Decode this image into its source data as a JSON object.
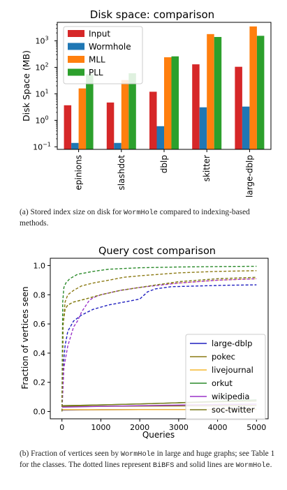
{
  "chart_data": [
    {
      "type": "bar",
      "title": "Disk space: comparison",
      "ylabel": "Disk Space (MB)",
      "yscale": "log",
      "ylim": [
        0.08,
        5000
      ],
      "yticks": [
        0.1,
        1,
        10,
        100,
        1000
      ],
      "ytick_labels": [
        {
          "base": "10",
          "exp": "−1"
        },
        {
          "base": "10",
          "exp": "0"
        },
        {
          "base": "10",
          "exp": "1"
        },
        {
          "base": "10",
          "exp": "2"
        },
        {
          "base": "10",
          "exp": "3"
        }
      ],
      "categories": [
        "epinions",
        "slashdot",
        "dblp",
        "skitter",
        "large-dblp"
      ],
      "legend_position": "top-left",
      "series": [
        {
          "name": "Input",
          "color": "#d62728",
          "values": [
            3.7,
            4.7,
            12,
            130,
            105
          ]
        },
        {
          "name": "Wormhole",
          "color": "#1f77b4",
          "values": [
            0.14,
            0.14,
            0.6,
            3.1,
            3.3
          ]
        },
        {
          "name": "MLL",
          "color": "#ff7f0e",
          "values": [
            16,
            33,
            240,
            1800,
            3500
          ]
        },
        {
          "name": "PLL",
          "color": "#2ca02c",
          "values": [
            55,
            60,
            260,
            1400,
            1550
          ]
        }
      ]
    },
    {
      "type": "line",
      "title": "Query cost comparison",
      "xlabel": "Queries",
      "ylabel": "Fraction of vertices seen",
      "xlim": [
        -300,
        5300
      ],
      "ylim": [
        -0.05,
        1.05
      ],
      "xticks": [
        0,
        1000,
        2000,
        3000,
        4000,
        5000
      ],
      "yticks": [
        0.0,
        0.2,
        0.4,
        0.6,
        0.8,
        1.0
      ],
      "ytick_labels": [
        "0.0",
        "0.2",
        "0.4",
        "0.6",
        "0.8",
        "1.0"
      ],
      "legend_position": "center-right",
      "series": [
        {
          "name": "large-dblp",
          "color": "#1f1fbf",
          "style": "dashed",
          "x": [
            0,
            30,
            80,
            150,
            300,
            500,
            800,
            1200,
            1600,
            2000,
            2200,
            2400,
            2800,
            3500,
            4200,
            5000
          ],
          "y": [
            0.0,
            0.3,
            0.45,
            0.55,
            0.62,
            0.66,
            0.7,
            0.73,
            0.75,
            0.77,
            0.82,
            0.84,
            0.855,
            0.86,
            0.865,
            0.868
          ]
        },
        {
          "name": "large-dblp",
          "color": "#1f1fbf",
          "style": "solid",
          "x": [
            0,
            1000,
            2000,
            3000,
            4000,
            5000
          ],
          "y": [
            0.01,
            0.012,
            0.013,
            0.013,
            0.014,
            0.014
          ]
        },
        {
          "name": "pokec",
          "color": "#8c7a14",
          "style": "dashed",
          "x": [
            0,
            30,
            80,
            150,
            300,
            500,
            800,
            1200,
            1600,
            2000,
            2500,
            3000,
            4000,
            5000
          ],
          "y": [
            0.0,
            0.6,
            0.75,
            0.8,
            0.83,
            0.86,
            0.88,
            0.9,
            0.92,
            0.93,
            0.94,
            0.95,
            0.96,
            0.965
          ]
        },
        {
          "name": "pokec",
          "color": "#8c7a14",
          "style": "solid",
          "x": [
            0,
            1000,
            2000,
            3000,
            4000,
            5000
          ],
          "y": [
            0.035,
            0.036,
            0.037,
            0.038,
            0.039,
            0.04
          ]
        },
        {
          "name": "livejournal",
          "color": "#f5b82e",
          "style": "dashed",
          "x": [
            0,
            30,
            80,
            150,
            300,
            600,
            1000,
            1500,
            2000,
            2500,
            3000,
            4000,
            5000
          ],
          "y": [
            0.0,
            0.62,
            0.7,
            0.73,
            0.75,
            0.77,
            0.8,
            0.83,
            0.85,
            0.87,
            0.88,
            0.9,
            0.91
          ]
        },
        {
          "name": "livejournal",
          "color": "#f5b82e",
          "style": "solid",
          "x": [
            0,
            1000,
            2000,
            3000,
            4000,
            5000
          ],
          "y": [
            0.012,
            0.012,
            0.013,
            0.013,
            0.013,
            0.014
          ]
        },
        {
          "name": "orkut",
          "color": "#2a8a2a",
          "style": "dashed",
          "x": [
            0,
            20,
            50,
            100,
            200,
            400,
            800,
            1200,
            2000,
            3000,
            4000,
            5000
          ],
          "y": [
            0.0,
            0.75,
            0.85,
            0.88,
            0.91,
            0.94,
            0.96,
            0.975,
            0.985,
            0.99,
            0.993,
            0.995
          ]
        },
        {
          "name": "orkut",
          "color": "#2a8a2a",
          "style": "solid",
          "x": [
            0,
            1000,
            2000,
            3000,
            4000,
            5000
          ],
          "y": [
            0.04,
            0.045,
            0.052,
            0.06,
            0.07,
            0.08
          ]
        },
        {
          "name": "wikipedia",
          "color": "#9a32c8",
          "style": "dashed",
          "x": [
            0,
            50,
            150,
            300,
            400,
            500,
            600,
            700,
            800,
            1000,
            1500,
            2000,
            3000,
            4000,
            5000
          ],
          "y": [
            0.0,
            0.3,
            0.45,
            0.58,
            0.62,
            0.68,
            0.72,
            0.76,
            0.78,
            0.8,
            0.83,
            0.85,
            0.88,
            0.9,
            0.91
          ]
        },
        {
          "name": "wikipedia",
          "color": "#9a32c8",
          "style": "solid",
          "x": [
            0,
            1000,
            2000,
            3000,
            4000,
            5000
          ],
          "y": [
            0.03,
            0.035,
            0.04,
            0.044,
            0.048,
            0.05
          ]
        },
        {
          "name": "soc-twitter",
          "color": "#7a7a1a",
          "style": "dashed",
          "x": [
            0,
            30,
            80,
            150,
            300,
            600,
            1000,
            1500,
            2000,
            2500,
            3000,
            4000,
            5000
          ],
          "y": [
            0.0,
            0.6,
            0.7,
            0.73,
            0.75,
            0.77,
            0.8,
            0.83,
            0.85,
            0.87,
            0.89,
            0.91,
            0.92
          ]
        },
        {
          "name": "soc-twitter",
          "color": "#7a7a1a",
          "style": "solid",
          "x": [
            0,
            1000,
            2000,
            3000,
            4000,
            5000
          ],
          "y": [
            0.04,
            0.045,
            0.052,
            0.06,
            0.066,
            0.072
          ]
        }
      ]
    }
  ],
  "captions": {
    "a": {
      "prefix": "(a)  Stored index size on disk for ",
      "code": "WormHole",
      "suffix": " compared to indexing-based methods."
    },
    "b": {
      "prefix": "(b)  Fraction of vertices seen by ",
      "code1": "WormHole",
      "mid1": " in large and huge graphs; see Table 1 for the classes. The dotted lines represent ",
      "code2": "BiBFS",
      "mid2": " and solid lines are ",
      "code3": "WormHole",
      "suffix": "."
    }
  }
}
